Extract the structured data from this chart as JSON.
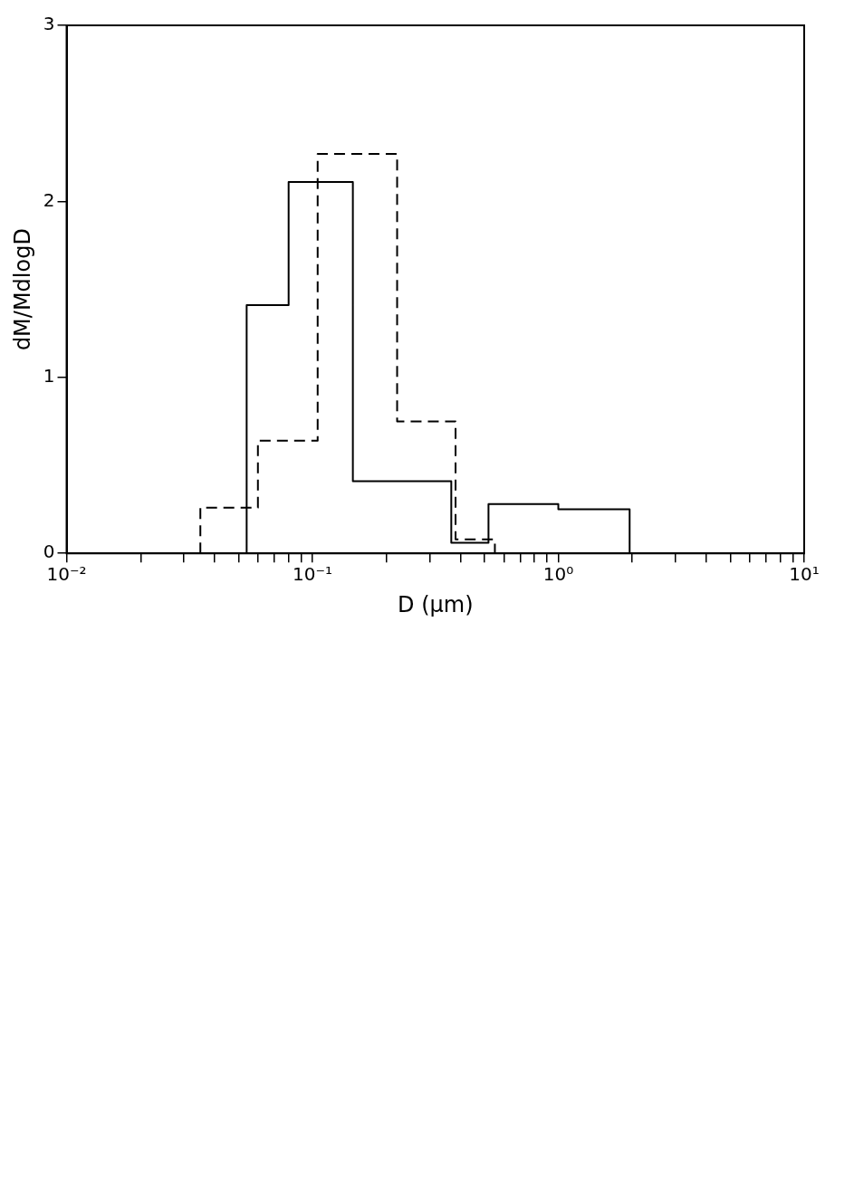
{
  "chart_data": {
    "type": "step",
    "xlabel": "D (μm)",
    "ylabel": "dM/MdlogD",
    "series": [
      {
        "color": "#000000",
        "line_style": "solid",
        "x": [
          0.054,
          0.054,
          0.08,
          0.146,
          0.367,
          0.52,
          1.0,
          1.95
        ],
        "values": [
          0,
          1.41,
          2.11,
          0.41,
          0.06,
          0.28,
          0.25,
          0
        ]
      },
      {
        "color": "#000000",
        "line_style": "dashed",
        "x": [
          0.035,
          0.035,
          0.06,
          0.105,
          0.221,
          0.382,
          0.552
        ],
        "values": [
          0,
          0.26,
          0.64,
          2.27,
          0.75,
          0.08,
          0
        ]
      }
    ],
    "log": "x",
    "xlim": [
      0.01,
      10
    ],
    "ylim": [
      0,
      3
    ],
    "xticks": [
      {
        "value": 0.01,
        "label": "10⁻²"
      },
      {
        "value": 0.02,
        "label": null
      },
      {
        "value": 0.03,
        "label": null
      },
      {
        "value": 0.04,
        "label": null
      },
      {
        "value": 0.05,
        "label": null
      },
      {
        "value": 0.06,
        "label": null
      },
      {
        "value": 0.07,
        "label": null
      },
      {
        "value": 0.08,
        "label": null
      },
      {
        "value": 0.09,
        "label": null
      },
      {
        "value": 0.1,
        "label": "10⁻¹"
      },
      {
        "value": 0.2,
        "label": null
      },
      {
        "value": 0.3,
        "label": null
      },
      {
        "value": 0.4,
        "label": null
      },
      {
        "value": 0.5,
        "label": null
      },
      {
        "value": 0.6,
        "label": null
      },
      {
        "value": 0.7,
        "label": null
      },
      {
        "value": 0.8,
        "label": null
      },
      {
        "value": 0.9,
        "label": null
      },
      {
        "value": 1,
        "label": "10⁰"
      },
      {
        "value": 2,
        "label": null
      },
      {
        "value": 3,
        "label": null
      },
      {
        "value": 4,
        "label": null
      },
      {
        "value": 5,
        "label": null
      },
      {
        "value": 6,
        "label": null
      },
      {
        "value": 7,
        "label": null
      },
      {
        "value": 8,
        "label": null
      },
      {
        "value": 9,
        "label": null
      },
      {
        "value": 10,
        "label": "10¹"
      }
    ],
    "yticks": [
      0,
      1,
      2,
      3
    ],
    "grid": false,
    "legend": false
  }
}
